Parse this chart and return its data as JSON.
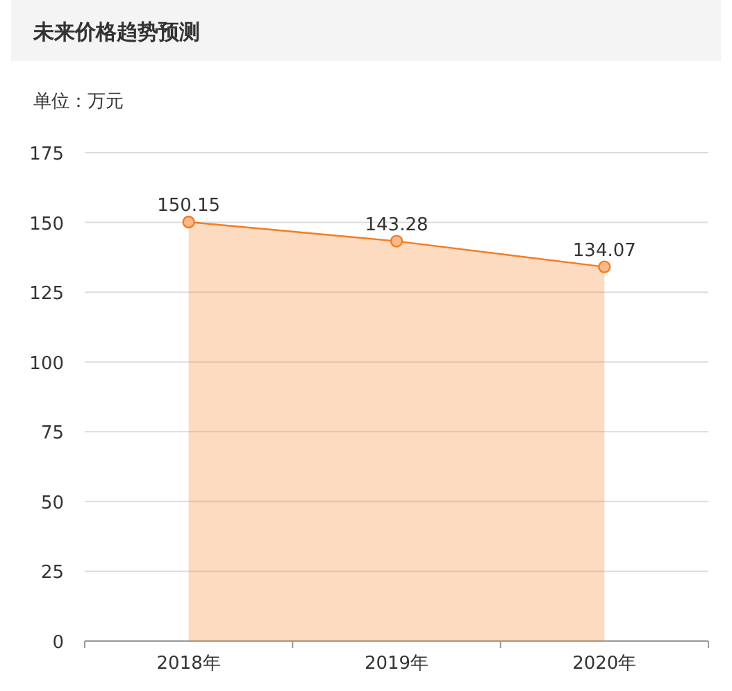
{
  "chart_data": {
    "type": "area",
    "title": "未来价格趋势预测",
    "subtitle": "单位：万元",
    "categories": [
      "2018年",
      "2019年",
      "2020年"
    ],
    "series": [
      {
        "color": "#f47c20",
        "values": [
          150.15,
          143.28,
          134.07
        ]
      }
    ],
    "ylim": [
      0,
      175
    ],
    "yticks": [
      0,
      25,
      50,
      75,
      100,
      125,
      150,
      175
    ],
    "grid": "y",
    "marker": "circle",
    "data_labels": true
  }
}
